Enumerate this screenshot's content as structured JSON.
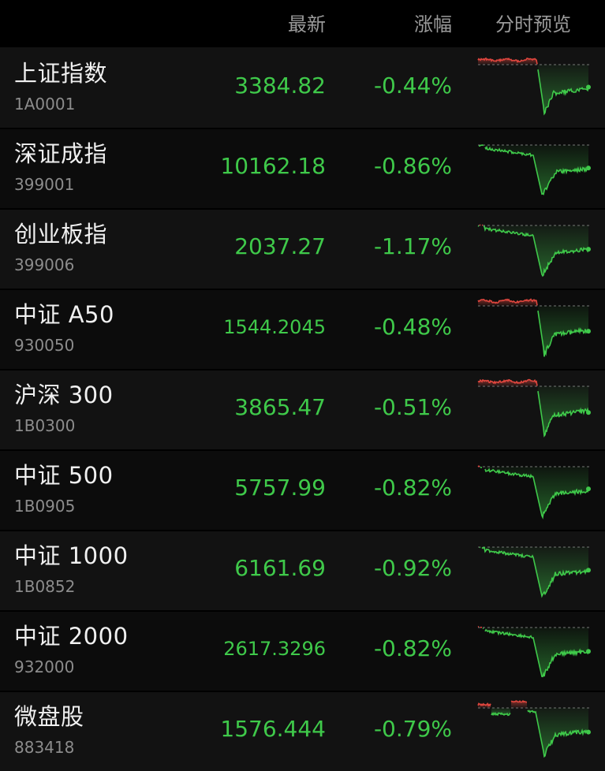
{
  "header": {
    "latest_label": "最新",
    "change_label": "涨幅",
    "preview_label": "分时预览"
  },
  "colors": {
    "down": "#3fc94a",
    "up": "#e0463e"
  },
  "rows": [
    {
      "name": "上证指数",
      "code": "1A0001",
      "price": "3384.82",
      "change": "-0.44%",
      "pattern": "rise_then_drop",
      "small": false
    },
    {
      "name": "深证成指",
      "code": "399001",
      "price": "10162.18",
      "change": "-0.86%",
      "pattern": "drift_then_drop",
      "small": false
    },
    {
      "name": "创业板指",
      "code": "399006",
      "price": "2037.27",
      "change": "-1.17%",
      "pattern": "drift_then_drop",
      "small": false
    },
    {
      "name": "中证 A50",
      "code": "930050",
      "price": "1544.2045",
      "change": "-0.48%",
      "pattern": "rise_then_drop",
      "small": true
    },
    {
      "name": "沪深 300",
      "code": "1B0300",
      "price": "3865.47",
      "change": "-0.51%",
      "pattern": "rise_then_drop",
      "small": false
    },
    {
      "name": "中证 500",
      "code": "1B0905",
      "price": "5757.99",
      "change": "-0.82%",
      "pattern": "drift_then_drop",
      "small": false
    },
    {
      "name": "中证 1000",
      "code": "1B0852",
      "price": "6161.69",
      "change": "-0.92%",
      "pattern": "drift_then_drop",
      "small": false
    },
    {
      "name": "中证 2000",
      "code": "932000",
      "price": "2617.3296",
      "change": "-0.82%",
      "pattern": "drift_then_drop",
      "small": true
    },
    {
      "name": "微盘股",
      "code": "883418",
      "price": "1576.444",
      "change": "-0.79%",
      "pattern": "mixed_then_drop",
      "small": false
    }
  ]
}
